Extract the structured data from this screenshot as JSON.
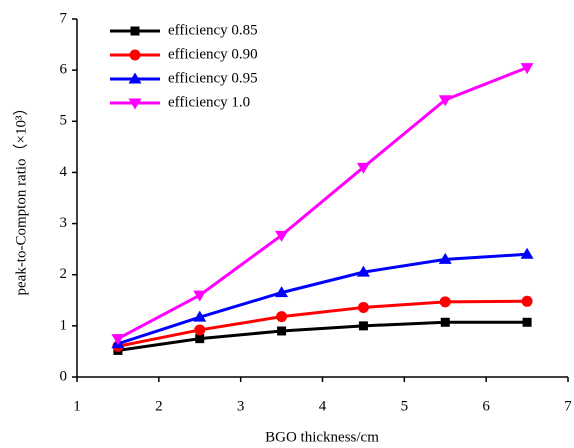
{
  "chart_data": {
    "type": "line",
    "x_label": "BGO thickness/cm",
    "y_label": "peak-to-Compton ratio（×10³）",
    "x": [
      1.5,
      2.5,
      3.5,
      4.5,
      5.5,
      6.5
    ],
    "series": [
      {
        "name": "efficiency 0.85",
        "color": "#000000",
        "marker": "square",
        "values": [
          0.52,
          0.75,
          0.9,
          1.0,
          1.07,
          1.07
        ]
      },
      {
        "name": "efficiency 0.90",
        "color": "#ff0000",
        "marker": "circle",
        "values": [
          0.6,
          0.92,
          1.18,
          1.36,
          1.47,
          1.48
        ]
      },
      {
        "name": "efficiency 0.95",
        "color": "#0000ff",
        "marker": "triangle-up",
        "values": [
          0.65,
          1.17,
          1.65,
          2.05,
          2.3,
          2.4
        ]
      },
      {
        "name": "efficiency 1.0",
        "color": "#ff00ff",
        "marker": "triangle-down",
        "values": [
          0.75,
          1.6,
          2.77,
          4.1,
          5.42,
          6.05
        ]
      }
    ],
    "xlim": [
      1,
      7
    ],
    "xticks": [
      1,
      2,
      3,
      4,
      5,
      6,
      7
    ],
    "ylim": [
      0,
      7
    ],
    "yticks": [
      0,
      1,
      2,
      3,
      4,
      5,
      6,
      7
    ],
    "legend": "upper left"
  }
}
